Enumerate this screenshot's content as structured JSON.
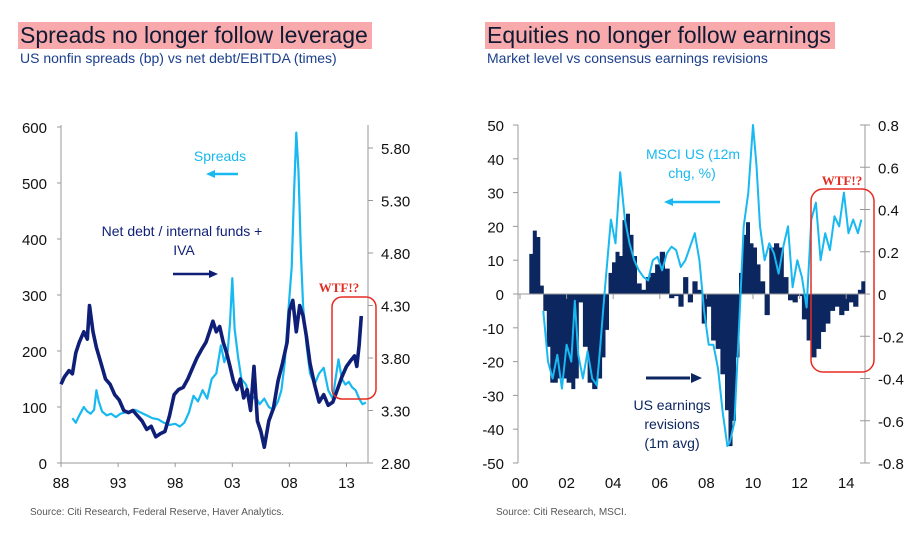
{
  "colors": {
    "dark_navy": "#0f1f78",
    "light_blue": "#18b8f0",
    "bar_navy": "#0c2660",
    "highlight_red": "#e52c22",
    "title_bg": "#f7a9ab",
    "axis_gray": "#999999"
  },
  "chart_data": [
    {
      "type": "line",
      "title": "Spreads no longer follow leverage",
      "subtitle": "US nonfin spreads (bp) vs net debt/EBITDA (times)",
      "source": "Source: Citi Research, Federal Reserve, Haver Analytics.",
      "xlabel": "",
      "x_ticks": [
        "88",
        "93",
        "98",
        "03",
        "08",
        "13"
      ],
      "x_tick_years": [
        1988,
        1993,
        1998,
        2003,
        2008,
        2013
      ],
      "xlim": [
        1988,
        2015.3
      ],
      "ylim_left": [
        0,
        600
      ],
      "y_ticks_left": [
        "0",
        "100",
        "200",
        "300",
        "400",
        "500",
        "600"
      ],
      "ylim_right": [
        2.8,
        6.0
      ],
      "y_ticks_right": [
        "2.80",
        "3.30",
        "3.80",
        "4.30",
        "4.80",
        "5.30",
        "5.80"
      ],
      "annotations": [
        {
          "text": "Spreads",
          "arrow": "left",
          "series": "Spreads"
        },
        {
          "text_line1": "Net debt / internal funds +",
          "text_line2": "IVA",
          "arrow": "right",
          "series": "Net debt / internal funds + IVA"
        },
        {
          "text": "WTF!?",
          "style": "red-box",
          "x_range": [
            2012.2,
            2014.9
          ]
        }
      ],
      "series": [
        {
          "name": "Spreads",
          "axis": "left",
          "color": "#18b8f0",
          "x": [
            1989.0,
            1989.3,
            1989.6,
            1990.0,
            1990.3,
            1990.6,
            1990.9,
            1991.1,
            1991.3,
            1991.6,
            1992.0,
            1992.4,
            1992.8,
            1993.2,
            1993.6,
            1994.0,
            1994.5,
            1995.0,
            1995.5,
            1996.0,
            1996.5,
            1997.0,
            1997.5,
            1998.0,
            1998.4,
            1998.8,
            1999.2,
            1999.6,
            2000.0,
            2000.4,
            2000.8,
            2001.2,
            2001.6,
            2002.0,
            2002.3,
            2002.6,
            2002.8,
            2003.0,
            2003.2,
            2003.5,
            2003.8,
            2004.2,
            2004.6,
            2005.0,
            2005.4,
            2005.8,
            2006.2,
            2006.6,
            2007.0,
            2007.3,
            2007.6,
            2007.9,
            2008.2,
            2008.4,
            2008.6,
            2008.8,
            2009.0,
            2009.2,
            2009.5,
            2009.8,
            2010.2,
            2010.6,
            2011.0,
            2011.4,
            2011.8,
            2012.0,
            2012.3,
            2012.6,
            2012.9,
            2013.2,
            2013.5,
            2013.8,
            2014.1,
            2014.4,
            2014.7
          ],
          "y": [
            80,
            72,
            85,
            100,
            92,
            88,
            95,
            130,
            110,
            92,
            85,
            88,
            82,
            88,
            90,
            92,
            95,
            90,
            85,
            80,
            78,
            72,
            68,
            70,
            65,
            72,
            90,
            120,
            110,
            130,
            115,
            150,
            160,
            210,
            180,
            200,
            250,
            330,
            240,
            190,
            150,
            140,
            110,
            120,
            105,
            115,
            100,
            95,
            110,
            130,
            180,
            270,
            350,
            480,
            590,
            520,
            380,
            280,
            210,
            160,
            140,
            160,
            170,
            130,
            115,
            145,
            185,
            150,
            140,
            145,
            135,
            130,
            115,
            105,
            108
          ]
        },
        {
          "name": "Net debt / internal funds + IVA",
          "axis": "right",
          "color": "#0f1f78",
          "x": [
            1988.0,
            1988.3,
            1988.7,
            1989.0,
            1989.3,
            1989.6,
            1990.0,
            1990.3,
            1990.5,
            1990.8,
            1991.1,
            1991.5,
            1991.9,
            1992.3,
            1992.7,
            1993.1,
            1993.5,
            1993.9,
            1994.3,
            1994.7,
            1995.1,
            1995.5,
            1995.9,
            1996.3,
            1996.7,
            1997.1,
            1997.5,
            1997.9,
            1998.3,
            1998.7,
            1999.1,
            1999.5,
            1999.9,
            2000.3,
            2000.7,
            2001.0,
            2001.3,
            2001.6,
            2001.9,
            2002.2,
            2002.5,
            2002.8,
            2003.1,
            2003.4,
            2003.7,
            2004.0,
            2004.3,
            2004.6,
            2004.9,
            2005.2,
            2005.5,
            2005.8,
            2006.2,
            2006.6,
            2007.0,
            2007.4,
            2007.8,
            2008.0,
            2008.3,
            2008.6,
            2008.9,
            2009.2,
            2009.5,
            2009.8,
            2010.2,
            2010.6,
            2011.0,
            2011.4,
            2011.8,
            2012.2,
            2012.6,
            2013.0,
            2013.4,
            2013.7,
            2013.9,
            2014.1,
            2014.3
          ],
          "y": [
            3.55,
            3.62,
            3.68,
            3.65,
            3.85,
            3.95,
            4.05,
            3.98,
            4.3,
            4.05,
            3.9,
            3.75,
            3.6,
            3.55,
            3.45,
            3.4,
            3.3,
            3.28,
            3.3,
            3.25,
            3.2,
            3.12,
            3.15,
            3.05,
            3.08,
            3.1,
            3.25,
            3.45,
            3.5,
            3.52,
            3.6,
            3.7,
            3.8,
            3.88,
            3.95,
            4.05,
            4.15,
            4.05,
            4.1,
            3.95,
            3.85,
            3.72,
            3.58,
            3.5,
            3.6,
            3.42,
            3.5,
            3.3,
            3.72,
            3.2,
            3.1,
            2.95,
            3.2,
            3.32,
            3.58,
            3.75,
            3.95,
            4.25,
            4.35,
            4.05,
            4.3,
            4.2,
            4.0,
            3.75,
            3.55,
            3.38,
            3.45,
            3.35,
            3.38,
            3.5,
            3.62,
            3.72,
            3.78,
            3.82,
            3.72,
            3.92,
            4.2
          ]
        }
      ]
    },
    {
      "type": "bar+line",
      "title": "Equities no longer follow earnings",
      "subtitle": "Market level vs consensus earnings revisions",
      "source": "Source: Citi Research, MSCI.",
      "xlabel": "",
      "x_ticks": [
        "00",
        "02",
        "04",
        "06",
        "08",
        "10",
        "12",
        "14"
      ],
      "x_tick_years": [
        2000,
        2002,
        2004,
        2006,
        2008,
        2010,
        2012,
        2014
      ],
      "xlim": [
        2000,
        2014.9
      ],
      "ylim_left": [
        -50,
        50
      ],
      "y_ticks_left": [
        "-50",
        "-40",
        "-30",
        "-20",
        "-10",
        "0",
        "10",
        "20",
        "30",
        "40",
        "50"
      ],
      "ylim_right": [
        -0.8,
        0.8
      ],
      "y_ticks_right": [
        "-0.8",
        "-0.6",
        "-0.4",
        "-0.2",
        "0",
        "0.2",
        "0.4",
        "0.6",
        "0.8"
      ],
      "annotations": [
        {
          "text_line1": "MSCI US (12m",
          "text_line2": "chg, %)",
          "arrow": "left",
          "series": "MSCI US (12m chg, %)"
        },
        {
          "text_line1": "US earnings",
          "text_line2": "revisions",
          "text_line3": "(1m avg)",
          "arrow": "right",
          "series": "US earnings revisions (1m avg)"
        },
        {
          "text": "WTF!?",
          "style": "red-box",
          "x_range": [
            2012.2,
            2014.8
          ]
        }
      ],
      "series": [
        {
          "name": "US earnings revisions (1m avg)",
          "type": "bar",
          "axis": "right",
          "color": "#0c2660",
          "x": [
            2000.4,
            2000.55,
            2000.7,
            2000.85,
            2001.0,
            2001.15,
            2001.3,
            2001.45,
            2001.6,
            2001.8,
            2002.0,
            2002.2,
            2002.35,
            2002.5,
            2002.7,
            2002.9,
            2003.1,
            2003.3,
            2003.5,
            2003.65,
            2003.8,
            2003.95,
            2004.1,
            2004.25,
            2004.4,
            2004.55,
            2004.7,
            2004.85,
            2005.0,
            2005.2,
            2005.4,
            2005.6,
            2005.8,
            2006.0,
            2006.2,
            2006.4,
            2006.6,
            2006.8,
            2007.0,
            2007.2,
            2007.4,
            2007.6,
            2007.8,
            2008.0,
            2008.2,
            2008.4,
            2008.6,
            2008.8,
            2008.95,
            2009.1,
            2009.25,
            2009.4,
            2009.55,
            2009.7,
            2009.85,
            2010.0,
            2010.15,
            2010.3,
            2010.5,
            2010.7,
            2010.9,
            2011.1,
            2011.3,
            2011.5,
            2011.7,
            2011.9,
            2012.1,
            2012.3,
            2012.5,
            2012.7,
            2012.9,
            2013.1,
            2013.3,
            2013.5,
            2013.7,
            2013.9,
            2014.1,
            2014.3,
            2014.5,
            2014.65
          ],
          "y": [
            0.19,
            0.3,
            0.27,
            0.04,
            -0.08,
            -0.25,
            -0.42,
            -0.42,
            -0.4,
            -0.4,
            -0.42,
            -0.45,
            -0.4,
            -0.04,
            -0.25,
            -0.42,
            -0.45,
            -0.4,
            -0.3,
            -0.17,
            0.1,
            0.15,
            0.2,
            0.18,
            0.35,
            0.38,
            0.28,
            0.18,
            0.05,
            0.02,
            0.08,
            0.1,
            0.14,
            0.2,
            0.12,
            -0.02,
            -0.01,
            -0.06,
            0.08,
            -0.04,
            0.06,
            0.02,
            -0.14,
            -0.06,
            -0.22,
            -0.26,
            -0.38,
            -0.55,
            -0.72,
            -0.6,
            -0.3,
            0.1,
            0.28,
            0.34,
            0.24,
            0.22,
            0.14,
            0.06,
            -0.1,
            0.22,
            0.24,
            0.22,
            0.08,
            -0.03,
            -0.04,
            -0.01,
            -0.12,
            -0.22,
            -0.3,
            -0.26,
            -0.18,
            -0.14,
            -0.08,
            -0.06,
            -0.1,
            -0.08,
            -0.04,
            -0.06,
            0.02,
            0.06
          ]
        },
        {
          "name": "MSCI US (12m chg, %)",
          "type": "line",
          "axis": "left",
          "color": "#18b8f0",
          "x": [
            2001.0,
            2001.2,
            2001.4,
            2001.6,
            2001.8,
            2002.0,
            2002.2,
            2002.35,
            2002.5,
            2002.7,
            2002.9,
            2003.1,
            2003.3,
            2003.45,
            2003.6,
            2003.75,
            2003.9,
            2004.1,
            2004.3,
            2004.5,
            2004.7,
            2004.9,
            2005.1,
            2005.3,
            2005.5,
            2005.7,
            2005.9,
            2006.1,
            2006.3,
            2006.5,
            2006.7,
            2006.9,
            2007.1,
            2007.3,
            2007.5,
            2007.7,
            2007.9,
            2008.1,
            2008.3,
            2008.5,
            2008.7,
            2008.9,
            2009.0,
            2009.2,
            2009.4,
            2009.6,
            2009.8,
            2010.0,
            2010.15,
            2010.3,
            2010.5,
            2010.7,
            2010.9,
            2011.1,
            2011.3,
            2011.5,
            2011.7,
            2011.9,
            2012.1,
            2012.3,
            2012.5,
            2012.7,
            2012.9,
            2013.1,
            2013.3,
            2013.5,
            2013.7,
            2013.9,
            2014.1,
            2014.3,
            2014.5,
            2014.65
          ],
          "y": [
            -5,
            -20,
            -25,
            -18,
            -28,
            -15,
            -20,
            -2,
            -18,
            -25,
            -17,
            -25,
            -27,
            -15,
            -2,
            10,
            22,
            15,
            36,
            22,
            15,
            10,
            7,
            5,
            4,
            10,
            11,
            7,
            12,
            14,
            13,
            8,
            10,
            14,
            18,
            10,
            -5,
            -15,
            -15,
            -22,
            -35,
            -45,
            -44,
            -38,
            -10,
            20,
            30,
            50,
            38,
            20,
            10,
            15,
            12,
            6,
            14,
            20,
            2,
            10,
            5,
            -4,
            22,
            27,
            10,
            18,
            13,
            23,
            20,
            30,
            18,
            22,
            18,
            22
          ]
        }
      ]
    }
  ]
}
